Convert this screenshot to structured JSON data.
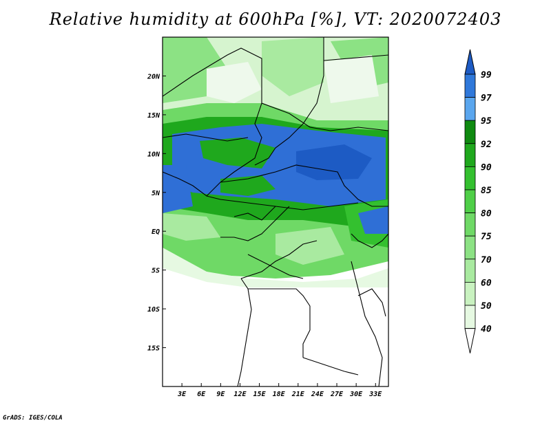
{
  "title": "Relative humidity at 600hPa [%], VT: 2020072403",
  "credit": "GrADS: IGES/COLA",
  "map": {
    "lon_range": [
      0,
      35
    ],
    "lat_range": [
      -20,
      25
    ],
    "x_ticks": [
      {
        "lon": 3,
        "label": "3E"
      },
      {
        "lon": 6,
        "label": "6E"
      },
      {
        "lon": 9,
        "label": "9E"
      },
      {
        "lon": 12,
        "label": "12E"
      },
      {
        "lon": 15,
        "label": "15E"
      },
      {
        "lon": 18,
        "label": "18E"
      },
      {
        "lon": 21,
        "label": "21E"
      },
      {
        "lon": 24,
        "label": "24E"
      },
      {
        "lon": 27,
        "label": "27E"
      },
      {
        "lon": 30,
        "label": "30E"
      },
      {
        "lon": 33,
        "label": "33E"
      }
    ],
    "y_ticks": [
      {
        "lat": 20,
        "label": "20N"
      },
      {
        "lat": 15,
        "label": "15N"
      },
      {
        "lat": 10,
        "label": "10N"
      },
      {
        "lat": 5,
        "label": "5N"
      },
      {
        "lat": 0,
        "label": "EQ"
      },
      {
        "lat": -5,
        "label": "5S"
      },
      {
        "lat": -10,
        "label": "10S"
      },
      {
        "lat": -15,
        "label": "15S"
      }
    ]
  },
  "colorbar": {
    "levels": [
      "40",
      "50",
      "60",
      "70",
      "75",
      "80",
      "85",
      "90",
      "92",
      "95",
      "97",
      "99"
    ],
    "colors": [
      "#e6f9e2",
      "#c9f2c0",
      "#a9eaa0",
      "#8ce284",
      "#6fd966",
      "#4fcf48",
      "#34c02f",
      "#1fa81d",
      "#0f8a10",
      "#5aa6ee",
      "#2f78da",
      "#1d5bc4"
    ]
  },
  "colors": {
    "humid_blue": "#2f6fd6",
    "green_dark": "#1f9a1c",
    "border": "#000000"
  }
}
